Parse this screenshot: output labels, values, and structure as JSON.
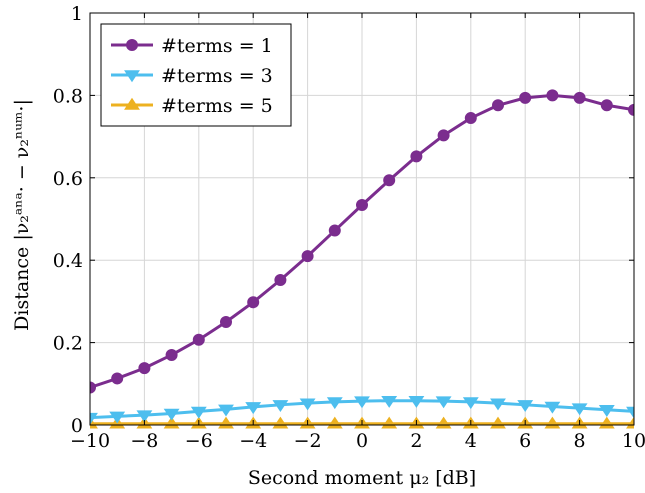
{
  "chart_data": {
    "type": "line",
    "xlabel": "Second moment μ₂ [dB]",
    "ylabel": "Distance |ν₂ᵃⁿᵃ· − ν₂ⁿᵘᵐ·|",
    "xlim": [
      -10,
      10
    ],
    "ylim": [
      0,
      1
    ],
    "x_ticks": [
      -10,
      -8,
      -6,
      -4,
      -2,
      0,
      2,
      4,
      6,
      8,
      10
    ],
    "x_tick_labels": [
      "−10",
      "−8",
      "−6",
      "−4",
      "−2",
      "0",
      "2",
      "4",
      "6",
      "8",
      "10"
    ],
    "y_ticks": [
      0,
      0.2,
      0.4,
      0.6,
      0.8,
      1
    ],
    "y_tick_labels": [
      "0",
      "0.2",
      "0.4",
      "0.6",
      "0.8",
      "1"
    ],
    "grid": true,
    "legend_position": "top-left",
    "x": [
      -10,
      -9,
      -8,
      -7,
      -6,
      -5,
      -4,
      -3,
      -2,
      -1,
      0,
      1,
      2,
      3,
      4,
      5,
      6,
      7,
      8,
      9,
      10
    ],
    "series": [
      {
        "name": "#terms = 1",
        "color": "#7b2d8e",
        "marker": "circle",
        "values": [
          0.091,
          0.113,
          0.138,
          0.17,
          0.207,
          0.25,
          0.298,
          0.352,
          0.41,
          0.472,
          0.534,
          0.594,
          0.652,
          0.703,
          0.745,
          0.776,
          0.794,
          0.8,
          0.794,
          0.776,
          0.765
        ]
      },
      {
        "name": "#terms = 3",
        "color": "#4dbeee",
        "marker": "triangle-down",
        "values": [
          0.018,
          0.021,
          0.024,
          0.028,
          0.033,
          0.038,
          0.044,
          0.049,
          0.053,
          0.056,
          0.058,
          0.059,
          0.059,
          0.058,
          0.056,
          0.053,
          0.049,
          0.045,
          0.041,
          0.037,
          0.033
        ]
      },
      {
        "name": "#terms = 5",
        "color": "#edb120",
        "marker": "triangle-up",
        "values": [
          0.003,
          0.003,
          0.003,
          0.003,
          0.003,
          0.003,
          0.003,
          0.003,
          0.003,
          0.003,
          0.003,
          0.003,
          0.003,
          0.003,
          0.003,
          0.003,
          0.003,
          0.003,
          0.003,
          0.003,
          0.003
        ]
      }
    ]
  }
}
